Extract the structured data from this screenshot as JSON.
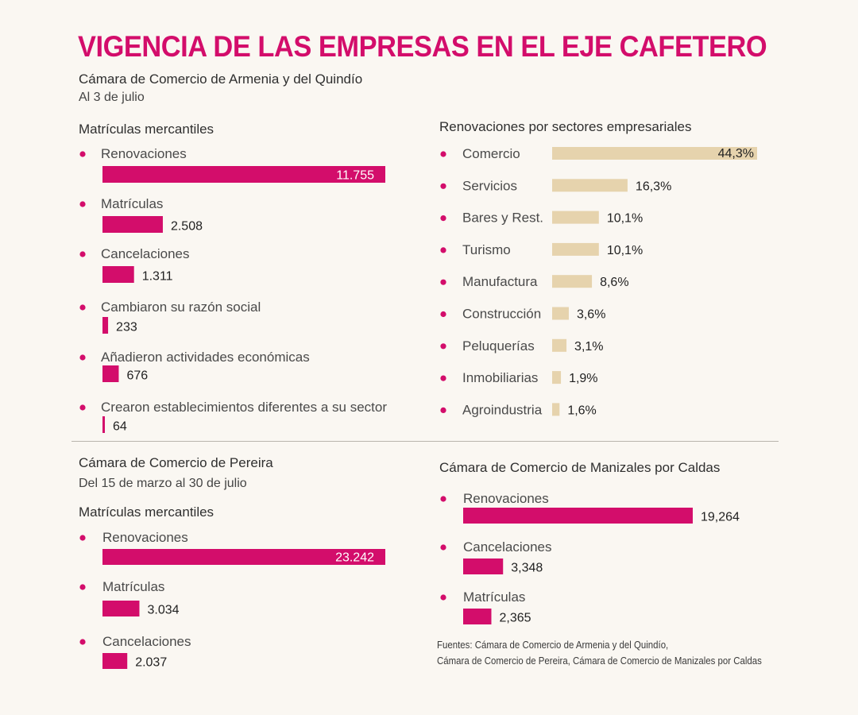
{
  "title": "VIGENCIA DE LAS EMPRESAS EN EL EJE CAFETERO",
  "armenia": {
    "heading": "Cámara de Comercio de Armenia y del Quindío",
    "date": "Al 3 de julio",
    "matriculas_heading": "Matrículas mercantiles",
    "sectores_heading": "Renovaciones por sectores empresariales"
  },
  "pereira": {
    "heading": "Cámara de Comercio de Pereira",
    "date": "Del 15 de marzo al 30 de julio",
    "matriculas_heading": "Matrículas mercantiles"
  },
  "manizales": {
    "heading": "Cámara de Comercio de Manizales por Caldas"
  },
  "sources": [
    "Fuentes: Cámara de Comercio de Armenia y del Quindío,",
    "Cámara de Comercio de Pereira, Cámara de Comercio de Manizales por Caldas"
  ],
  "colors": {
    "magenta": "#d30d6b",
    "beige": "#e6d3ad",
    "text": "#3a3a3a"
  },
  "chart_data": [
    {
      "id": "armenia-matriculas",
      "type": "bar",
      "orientation": "horizontal",
      "title": "Matrículas mercantiles",
      "categories": [
        "Renovaciones",
        "Matrículas",
        "Cancelaciones",
        "Cambiaron su razón social",
        "Añadieron actividades económicas",
        "Crearon establecimientos diferentes a su sector"
      ],
      "values": [
        11755,
        2508,
        1311,
        233,
        676,
        64
      ],
      "value_labels": [
        "11.755",
        "2.508",
        "1.311",
        "233",
        "676",
        "64"
      ],
      "xlim": [
        0,
        11755
      ]
    },
    {
      "id": "armenia-sectores",
      "type": "bar",
      "orientation": "horizontal",
      "title": "Renovaciones por sectores empresariales",
      "categories": [
        "Comercio",
        "Servicios",
        "Bares y Rest.",
        "Turismo",
        "Manufactura",
        "Construcción",
        "Peluquerías",
        "Inmobiliarias",
        "Agroindustria"
      ],
      "values": [
        44.3,
        16.3,
        10.1,
        10.1,
        8.6,
        3.6,
        3.1,
        1.9,
        1.6
      ],
      "value_labels": [
        "44,3%",
        "16,3%",
        "10,1%",
        "10,1%",
        "8,6%",
        "3,6%",
        "3,1%",
        "1,9%",
        "1,6%"
      ],
      "xlim": [
        0,
        44.3
      ]
    },
    {
      "id": "pereira-matriculas",
      "type": "bar",
      "orientation": "horizontal",
      "title": "Matrículas mercantiles",
      "categories": [
        "Renovaciones",
        "Matrículas",
        "Cancelaciones"
      ],
      "values": [
        23242,
        3034,
        2037
      ],
      "value_labels": [
        "23.242",
        "3.034",
        "2.037"
      ],
      "xlim": [
        0,
        23242
      ]
    },
    {
      "id": "manizales",
      "type": "bar",
      "orientation": "horizontal",
      "title": "Cámara de Comercio de Manizales por Caldas",
      "categories": [
        "Renovaciones",
        "Cancelaciones",
        "Matrículas"
      ],
      "values": [
        19264,
        3348,
        2365
      ],
      "value_labels": [
        "19,264",
        "3,348",
        "2,365"
      ],
      "xlim": [
        0,
        19264
      ]
    }
  ]
}
